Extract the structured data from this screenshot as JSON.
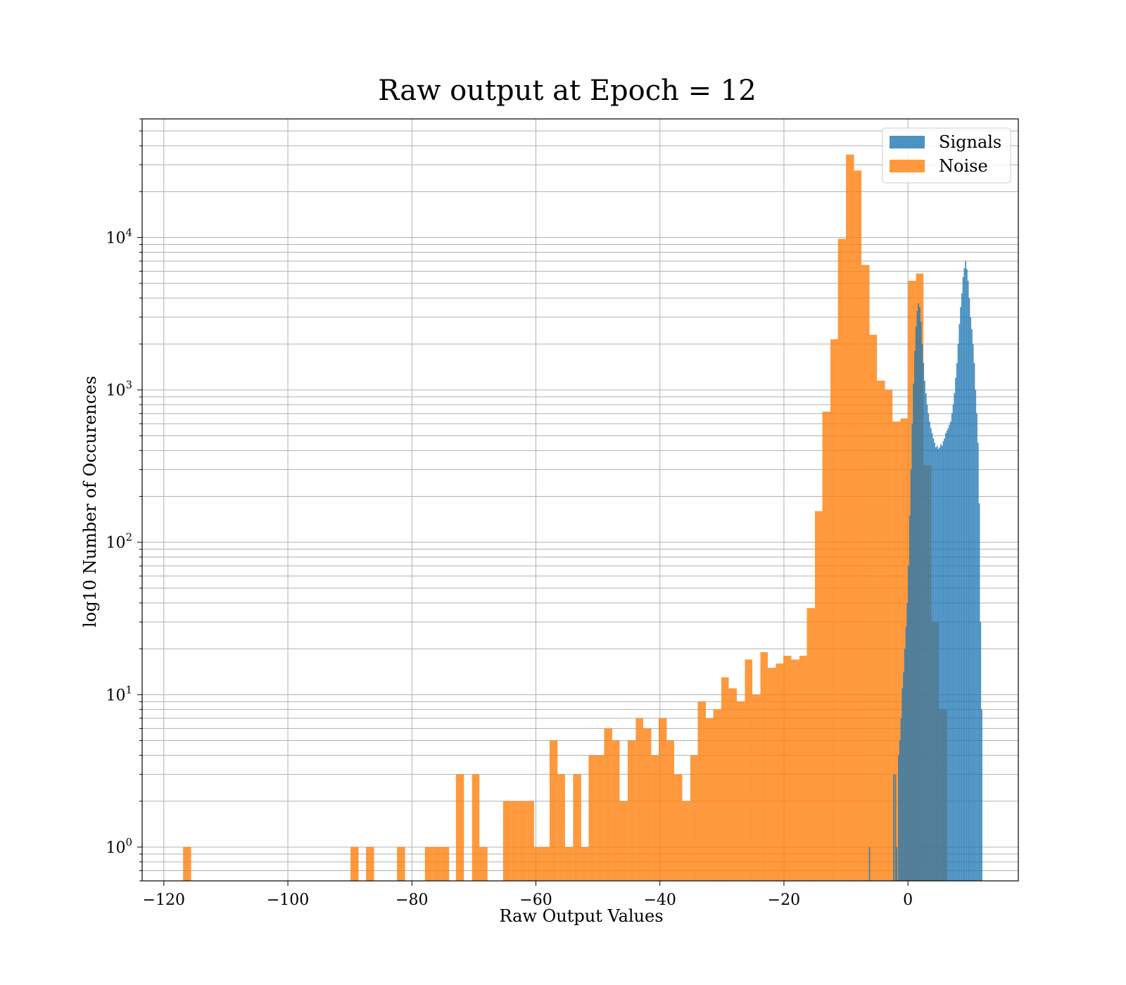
{
  "chart_data": {
    "type": "bar",
    "title": "Raw output at Epoch = 12",
    "xlabel": "Raw Output Values",
    "ylabel": "log10 Number of Occurences",
    "xlim": [
      -123.5,
      17.8
    ],
    "ylim": [
      0.6,
      60000
    ],
    "yscale": "log",
    "grid": true,
    "legend_position": "top-right",
    "x_ticks": [
      -120,
      -100,
      -80,
      -60,
      -40,
      -20,
      0
    ],
    "x_tick_labels": [
      "−120",
      "−100",
      "−80",
      "−60",
      "−40",
      "−20",
      "0"
    ],
    "y_ticks": [
      {
        "value": 1,
        "base": "10",
        "exp": "0"
      },
      {
        "value": 10,
        "base": "10",
        "exp": "1"
      },
      {
        "value": 100,
        "base": "10",
        "exp": "2"
      },
      {
        "value": 1000,
        "base": "10",
        "exp": "3"
      },
      {
        "value": 10000,
        "base": "10",
        "exp": "4"
      }
    ],
    "series": [
      {
        "name": "Signals",
        "color": "#1f77b4",
        "opacity": 0.8,
        "bins": [
          [
            -6.3,
            -6.1,
            1
          ],
          [
            -2.4,
            -2.2,
            3
          ],
          [
            -2.1,
            -1.9,
            3
          ],
          [
            -1.9,
            -1.7,
            1
          ],
          [
            -1.6,
            -1.4,
            4
          ],
          [
            -1.4,
            -1.2,
            5
          ],
          [
            -1.2,
            -1.0,
            7
          ],
          [
            -1.0,
            -0.8,
            11
          ],
          [
            -0.8,
            -0.6,
            14
          ],
          [
            -0.6,
            -0.4,
            20
          ],
          [
            -0.4,
            -0.2,
            28
          ],
          [
            -0.2,
            0.0,
            40
          ],
          [
            0.0,
            0.2,
            70
          ],
          [
            0.2,
            0.4,
            150
          ],
          [
            0.4,
            0.6,
            300
          ],
          [
            0.6,
            0.8,
            600
          ],
          [
            0.8,
            1.0,
            1100
          ],
          [
            1.0,
            1.2,
            1800
          ],
          [
            1.2,
            1.4,
            2600
          ],
          [
            1.4,
            1.6,
            3300
          ],
          [
            1.6,
            1.8,
            3700
          ],
          [
            1.8,
            2.0,
            3500
          ],
          [
            2.0,
            2.2,
            2800
          ],
          [
            2.2,
            2.4,
            2000
          ],
          [
            2.4,
            2.6,
            1500
          ],
          [
            2.6,
            2.8,
            1150
          ],
          [
            2.8,
            3.0,
            950
          ],
          [
            3.0,
            3.2,
            800
          ],
          [
            3.2,
            3.4,
            700
          ],
          [
            3.4,
            3.6,
            620
          ],
          [
            3.6,
            3.8,
            560
          ],
          [
            3.8,
            4.0,
            520
          ],
          [
            4.0,
            4.2,
            480
          ],
          [
            4.2,
            4.4,
            450
          ],
          [
            4.4,
            4.6,
            420
          ],
          [
            4.6,
            4.8,
            430
          ],
          [
            4.8,
            5.0,
            410
          ],
          [
            5.0,
            5.2,
            420
          ],
          [
            5.2,
            5.4,
            440
          ],
          [
            5.4,
            5.6,
            430
          ],
          [
            5.6,
            5.8,
            460
          ],
          [
            5.8,
            6.0,
            480
          ],
          [
            6.0,
            6.2,
            520
          ],
          [
            6.2,
            6.4,
            540
          ],
          [
            6.4,
            6.6,
            560
          ],
          [
            6.6,
            6.8,
            590
          ],
          [
            6.8,
            7.0,
            620
          ],
          [
            7.0,
            7.2,
            700
          ],
          [
            7.2,
            7.4,
            800
          ],
          [
            7.4,
            7.6,
            950
          ],
          [
            7.6,
            7.8,
            1200
          ],
          [
            7.8,
            8.0,
            1500
          ],
          [
            8.0,
            8.2,
            2000
          ],
          [
            8.2,
            8.4,
            2700
          ],
          [
            8.4,
            8.6,
            3500
          ],
          [
            8.6,
            8.8,
            4300
          ],
          [
            8.8,
            9.0,
            5500
          ],
          [
            9.0,
            9.2,
            6300
          ],
          [
            9.2,
            9.4,
            7000
          ],
          [
            9.4,
            9.6,
            6200
          ],
          [
            9.6,
            9.8,
            5200
          ],
          [
            9.8,
            10.0,
            4000
          ],
          [
            10.0,
            10.2,
            3000
          ],
          [
            10.2,
            10.4,
            2500
          ],
          [
            10.4,
            10.6,
            2000
          ],
          [
            10.6,
            10.8,
            1500
          ],
          [
            10.8,
            11.0,
            1000
          ],
          [
            11.0,
            11.2,
            700
          ],
          [
            11.2,
            11.4,
            450
          ],
          [
            11.4,
            11.6,
            180
          ],
          [
            11.6,
            11.8,
            30
          ],
          [
            11.8,
            12.0,
            8
          ]
        ]
      },
      {
        "name": "Noise",
        "color": "#ff7f0e",
        "opacity": 0.8,
        "bins": [
          [
            -116.9,
            -115.6,
            1
          ],
          [
            -89.9,
            -88.6,
            1
          ],
          [
            -87.4,
            -86.1,
            1
          ],
          [
            -82.4,
            -81.1,
            1
          ],
          [
            -77.9,
            -76.6,
            1
          ],
          [
            -76.6,
            -75.3,
            1
          ],
          [
            -75.3,
            -74.0,
            1
          ],
          [
            -72.9,
            -71.6,
            3
          ],
          [
            -70.3,
            -69.1,
            3
          ],
          [
            -69.1,
            -67.8,
            1
          ],
          [
            -65.3,
            -64.1,
            2
          ],
          [
            -64.1,
            -62.8,
            2
          ],
          [
            -62.8,
            -61.5,
            2
          ],
          [
            -61.5,
            -60.3,
            2
          ],
          [
            -60.3,
            -59.0,
            1
          ],
          [
            -59.0,
            -57.8,
            1
          ],
          [
            -57.8,
            -56.5,
            5
          ],
          [
            -56.5,
            -55.3,
            3
          ],
          [
            -55.3,
            -54.0,
            1
          ],
          [
            -54.0,
            -52.7,
            3
          ],
          [
            -52.7,
            -51.5,
            1
          ],
          [
            -51.5,
            -50.2,
            4
          ],
          [
            -50.2,
            -49.0,
            4
          ],
          [
            -49.0,
            -47.7,
            6
          ],
          [
            -47.7,
            -46.5,
            5
          ],
          [
            -46.5,
            -45.2,
            2
          ],
          [
            -45.2,
            -43.9,
            5
          ],
          [
            -43.9,
            -42.7,
            7
          ],
          [
            -42.7,
            -41.4,
            6
          ],
          [
            -41.4,
            -40.2,
            4
          ],
          [
            -40.2,
            -38.9,
            7
          ],
          [
            -38.9,
            -37.7,
            5
          ],
          [
            -37.7,
            -36.4,
            3
          ],
          [
            -36.4,
            -35.1,
            2
          ],
          [
            -35.1,
            -33.9,
            4
          ],
          [
            -33.9,
            -32.6,
            9
          ],
          [
            -32.6,
            -31.4,
            7
          ],
          [
            -31.4,
            -30.1,
            8
          ],
          [
            -30.1,
            -28.9,
            13
          ],
          [
            -28.9,
            -27.6,
            11
          ],
          [
            -27.6,
            -26.3,
            9
          ],
          [
            -26.3,
            -25.1,
            17
          ],
          [
            -25.1,
            -23.8,
            10
          ],
          [
            -23.8,
            -22.6,
            19
          ],
          [
            -22.6,
            -21.3,
            15
          ],
          [
            -21.3,
            -20.1,
            16
          ],
          [
            -20.1,
            -18.8,
            18
          ],
          [
            -18.8,
            -17.5,
            17
          ],
          [
            -17.5,
            -16.3,
            18
          ],
          [
            -16.3,
            -15.0,
            37
          ],
          [
            -15.0,
            -13.8,
            160
          ],
          [
            -13.8,
            -12.5,
            720
          ],
          [
            -12.5,
            -11.3,
            2150
          ],
          [
            -11.3,
            -10.0,
            9800
          ],
          [
            -10.0,
            -8.7,
            35000
          ],
          [
            -8.7,
            -7.5,
            27500
          ],
          [
            -7.5,
            -6.2,
            6600
          ],
          [
            -6.2,
            -5.0,
            2300
          ],
          [
            -5.0,
            -3.7,
            1150
          ],
          [
            -3.7,
            -2.5,
            1000
          ],
          [
            -2.5,
            -1.2,
            620
          ],
          [
            -1.2,
            0.0,
            650
          ],
          [
            0.0,
            1.3,
            5200
          ],
          [
            1.3,
            2.5,
            5800
          ],
          [
            2.5,
            3.8,
            320
          ],
          [
            3.8,
            5.0,
            30
          ],
          [
            5.0,
            6.3,
            8
          ]
        ]
      }
    ]
  }
}
